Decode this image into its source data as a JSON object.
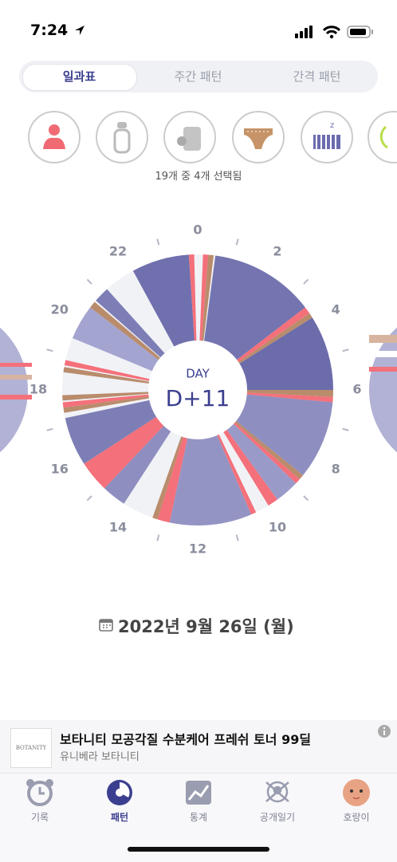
{
  "status_bar": {
    "time": "7:24"
  },
  "tabs": [
    "일과표",
    "주간 패턴",
    "간격 패턴"
  ],
  "selection_text": "19개 중 4개 선택됨",
  "clock": {
    "center_label": "DAY",
    "day": "D+11",
    "hour_labels": [
      0,
      2,
      4,
      6,
      8,
      10,
      12,
      14,
      16,
      18,
      20,
      22
    ],
    "segments": [
      {
        "start": 0.15,
        "end": 0.3,
        "color": "#f4707a"
      },
      {
        "start": 0.3,
        "end": 0.45,
        "color": "#b98c6c"
      },
      {
        "start": 0.5,
        "end": 3.5,
        "color": "#7474b0"
      },
      {
        "start": 3.5,
        "end": 3.7,
        "color": "#f4707a"
      },
      {
        "start": 3.7,
        "end": 3.85,
        "color": "#b98c6c"
      },
      {
        "start": 3.85,
        "end": 6.0,
        "color": "#6c6cab"
      },
      {
        "start": 6.0,
        "end": 6.2,
        "color": "#b98c6c"
      },
      {
        "start": 6.2,
        "end": 6.35,
        "color": "#f4707a"
      },
      {
        "start": 6.35,
        "end": 8.6,
        "color": "#8e8ec0"
      },
      {
        "start": 8.6,
        "end": 8.75,
        "color": "#b98c6c"
      },
      {
        "start": 8.75,
        "end": 8.9,
        "color": "#f4707a"
      },
      {
        "start": 8.9,
        "end": 9.6,
        "color": "#9a9ac8"
      },
      {
        "start": 9.6,
        "end": 9.9,
        "color": "#f4707a"
      },
      {
        "start": 10.3,
        "end": 10.45,
        "color": "#f4707a"
      },
      {
        "start": 10.45,
        "end": 12.8,
        "color": "#9494c4"
      },
      {
        "start": 12.8,
        "end": 13.15,
        "color": "#f4707a"
      },
      {
        "start": 13.15,
        "end": 13.3,
        "color": "#b98c6c"
      },
      {
        "start": 14.2,
        "end": 14.9,
        "color": "#8e8ec0"
      },
      {
        "start": 14.9,
        "end": 15.8,
        "color": "#f4707a"
      },
      {
        "start": 15.8,
        "end": 17.2,
        "color": "#7e7eb6"
      },
      {
        "start": 17.35,
        "end": 17.5,
        "color": "#b98c6c"
      },
      {
        "start": 17.5,
        "end": 17.65,
        "color": "#f4707a"
      },
      {
        "start": 17.7,
        "end": 17.85,
        "color": "#b98c6c"
      },
      {
        "start": 18.5,
        "end": 18.65,
        "color": "#b98c6c"
      },
      {
        "start": 18.7,
        "end": 18.85,
        "color": "#f4707a"
      },
      {
        "start": 19.5,
        "end": 20.5,
        "color": "#a4a4d0"
      },
      {
        "start": 20.5,
        "end": 20.7,
        "color": "#b98c6c"
      },
      {
        "start": 20.75,
        "end": 21.2,
        "color": "#7e7eb6"
      },
      {
        "start": 22.1,
        "end": 23.75,
        "color": "#7070ae"
      },
      {
        "start": 23.75,
        "end": 23.9,
        "color": "#f4707a"
      }
    ]
  },
  "date": "2022년 9월 26일 (월)",
  "ad": {
    "logo": "BOTANITY",
    "title": "보타니티 모공각질 수분케어 프레쉬 토너 99딜",
    "subtitle": "유니베라 보타니티"
  },
  "nav": [
    "기록",
    "패턴",
    "통계",
    "공개일기",
    "호랑이"
  ]
}
